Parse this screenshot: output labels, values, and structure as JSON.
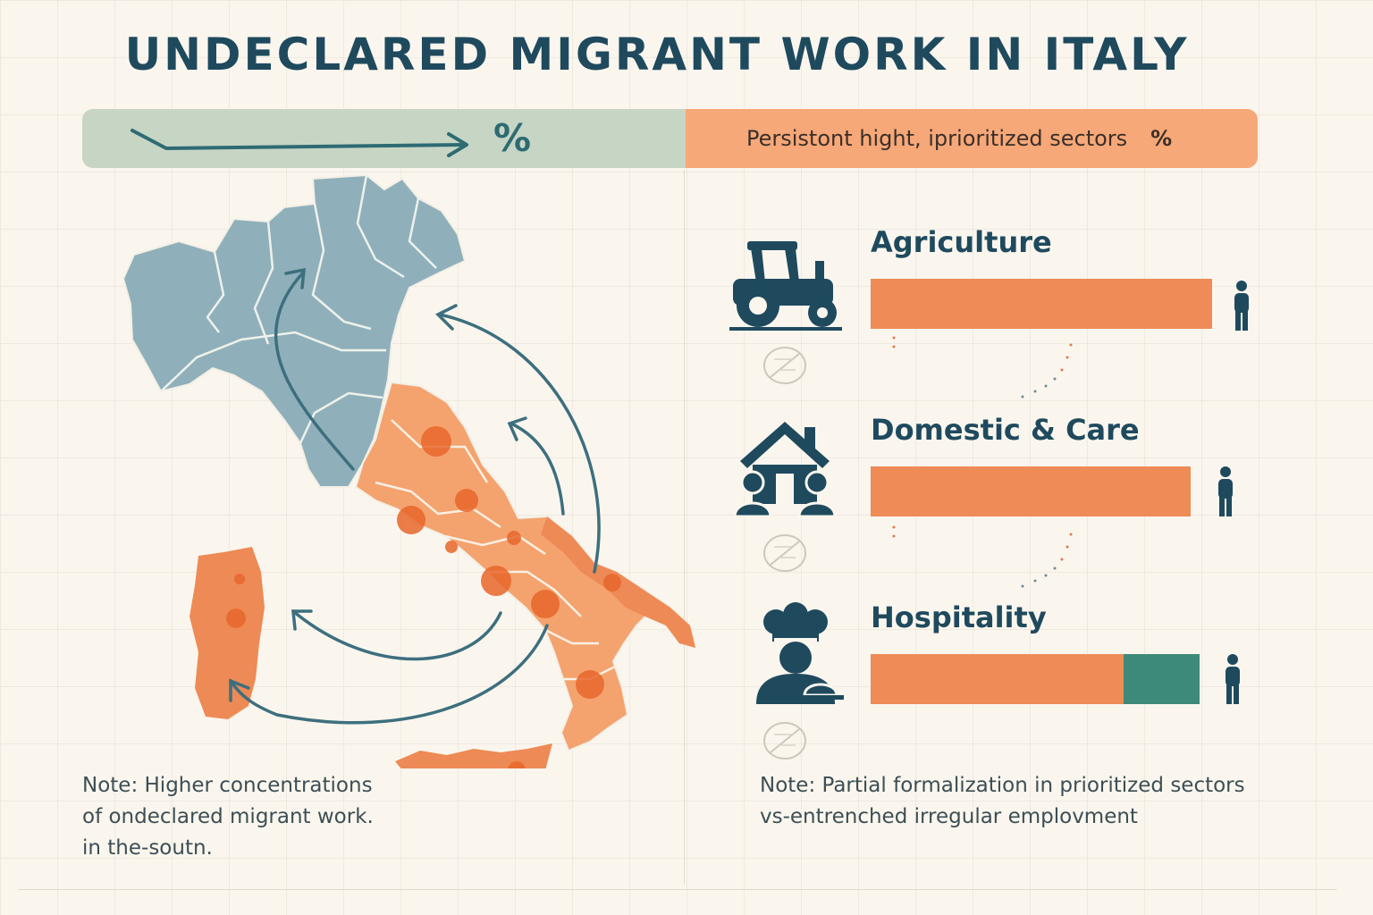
{
  "title": "UNDECLARED MIGRANT WORK IN ITALY",
  "banner": {
    "left_percent": "%",
    "right_text": "Persistont hight, iprioritized sectors",
    "right_percent": "%"
  },
  "sectors": [
    {
      "label": "Agriculture",
      "icon": "tractor-icon",
      "orange_share": 1.0,
      "green_share": 0.0
    },
    {
      "label": "Domestic & Care",
      "icon": "house-family-icon",
      "orange_share": 1.0,
      "green_share": 0.0
    },
    {
      "label": "Hospitality",
      "icon": "chef-icon",
      "orange_share": 0.77,
      "green_share": 0.23
    }
  ],
  "notes": {
    "left": [
      "Note: Higher concentrations",
      "of ondeclared migrant work.",
      "in the-soutn."
    ],
    "right": [
      "Note: Partial formalization in prioritized sectors",
      "vs-entrenched irregular emplovment"
    ]
  },
  "colors": {
    "navy": "#1f4a5e",
    "north_blue": "#8fb0ba",
    "south_orange": "#f4a36e",
    "hotspot": "#e8672c",
    "bar_orange": "#ee8b56",
    "bar_green": "#3e8a78",
    "banner_green": "#c7d5c4",
    "banner_orange": "#f6a878"
  }
}
